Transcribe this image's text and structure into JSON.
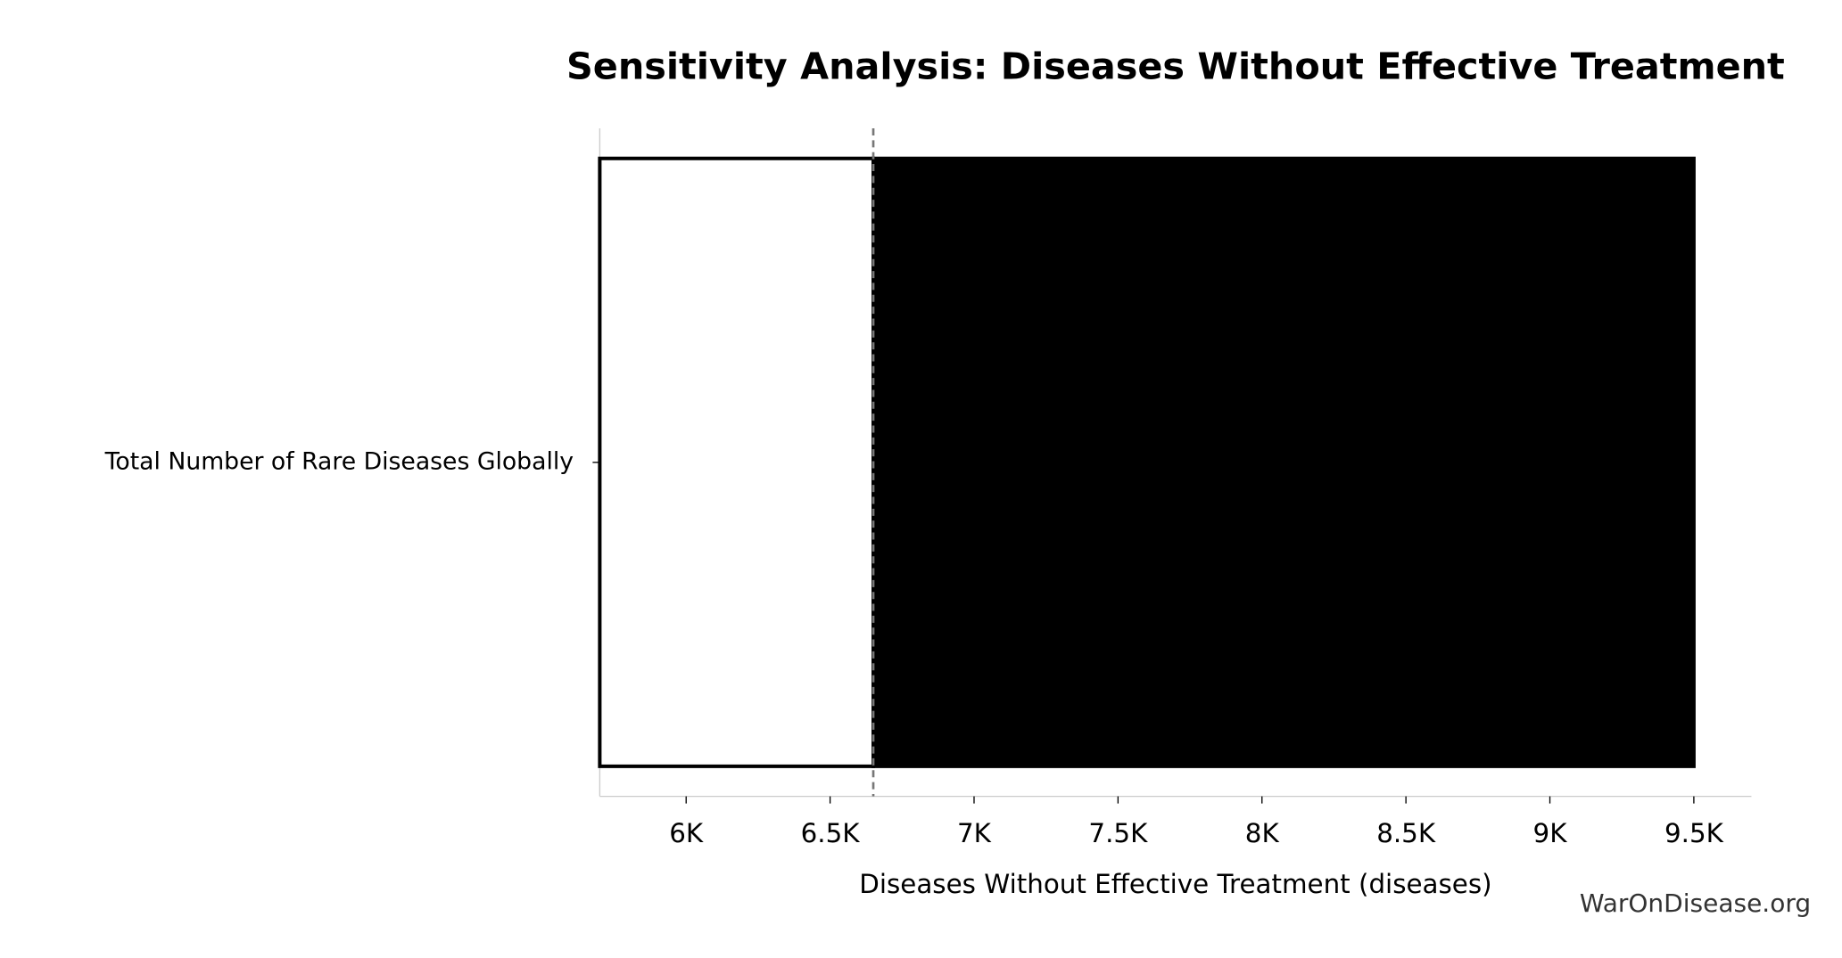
{
  "chart_data": {
    "type": "tornado",
    "title": "Sensitivity Analysis: Diseases Without Effective Treatment",
    "xlabel": "Diseases Without Effective Treatment (diseases)",
    "categories": [
      "Total Number of Rare Diseases Globally"
    ],
    "baseline": 6650,
    "series": [
      {
        "color": "#ffffff",
        "edgecolor": "#000000",
        "values": [
          5700
        ]
      },
      {
        "color": "#000000",
        "edgecolor": "#000000",
        "values": [
          9500
        ]
      }
    ],
    "xlim": [
      5700,
      9700
    ],
    "xticks": [
      {
        "value": 6000,
        "label": "6K"
      },
      {
        "value": 6500,
        "label": "6.5K"
      },
      {
        "value": 7000,
        "label": "7K"
      },
      {
        "value": 7500,
        "label": "7.5K"
      },
      {
        "value": 8000,
        "label": "8K"
      },
      {
        "value": 8500,
        "label": "8.5K"
      },
      {
        "value": 9000,
        "label": "9K"
      },
      {
        "value": 9500,
        "label": "9.5K"
      }
    ],
    "watermark": "WarOnDisease.org"
  }
}
